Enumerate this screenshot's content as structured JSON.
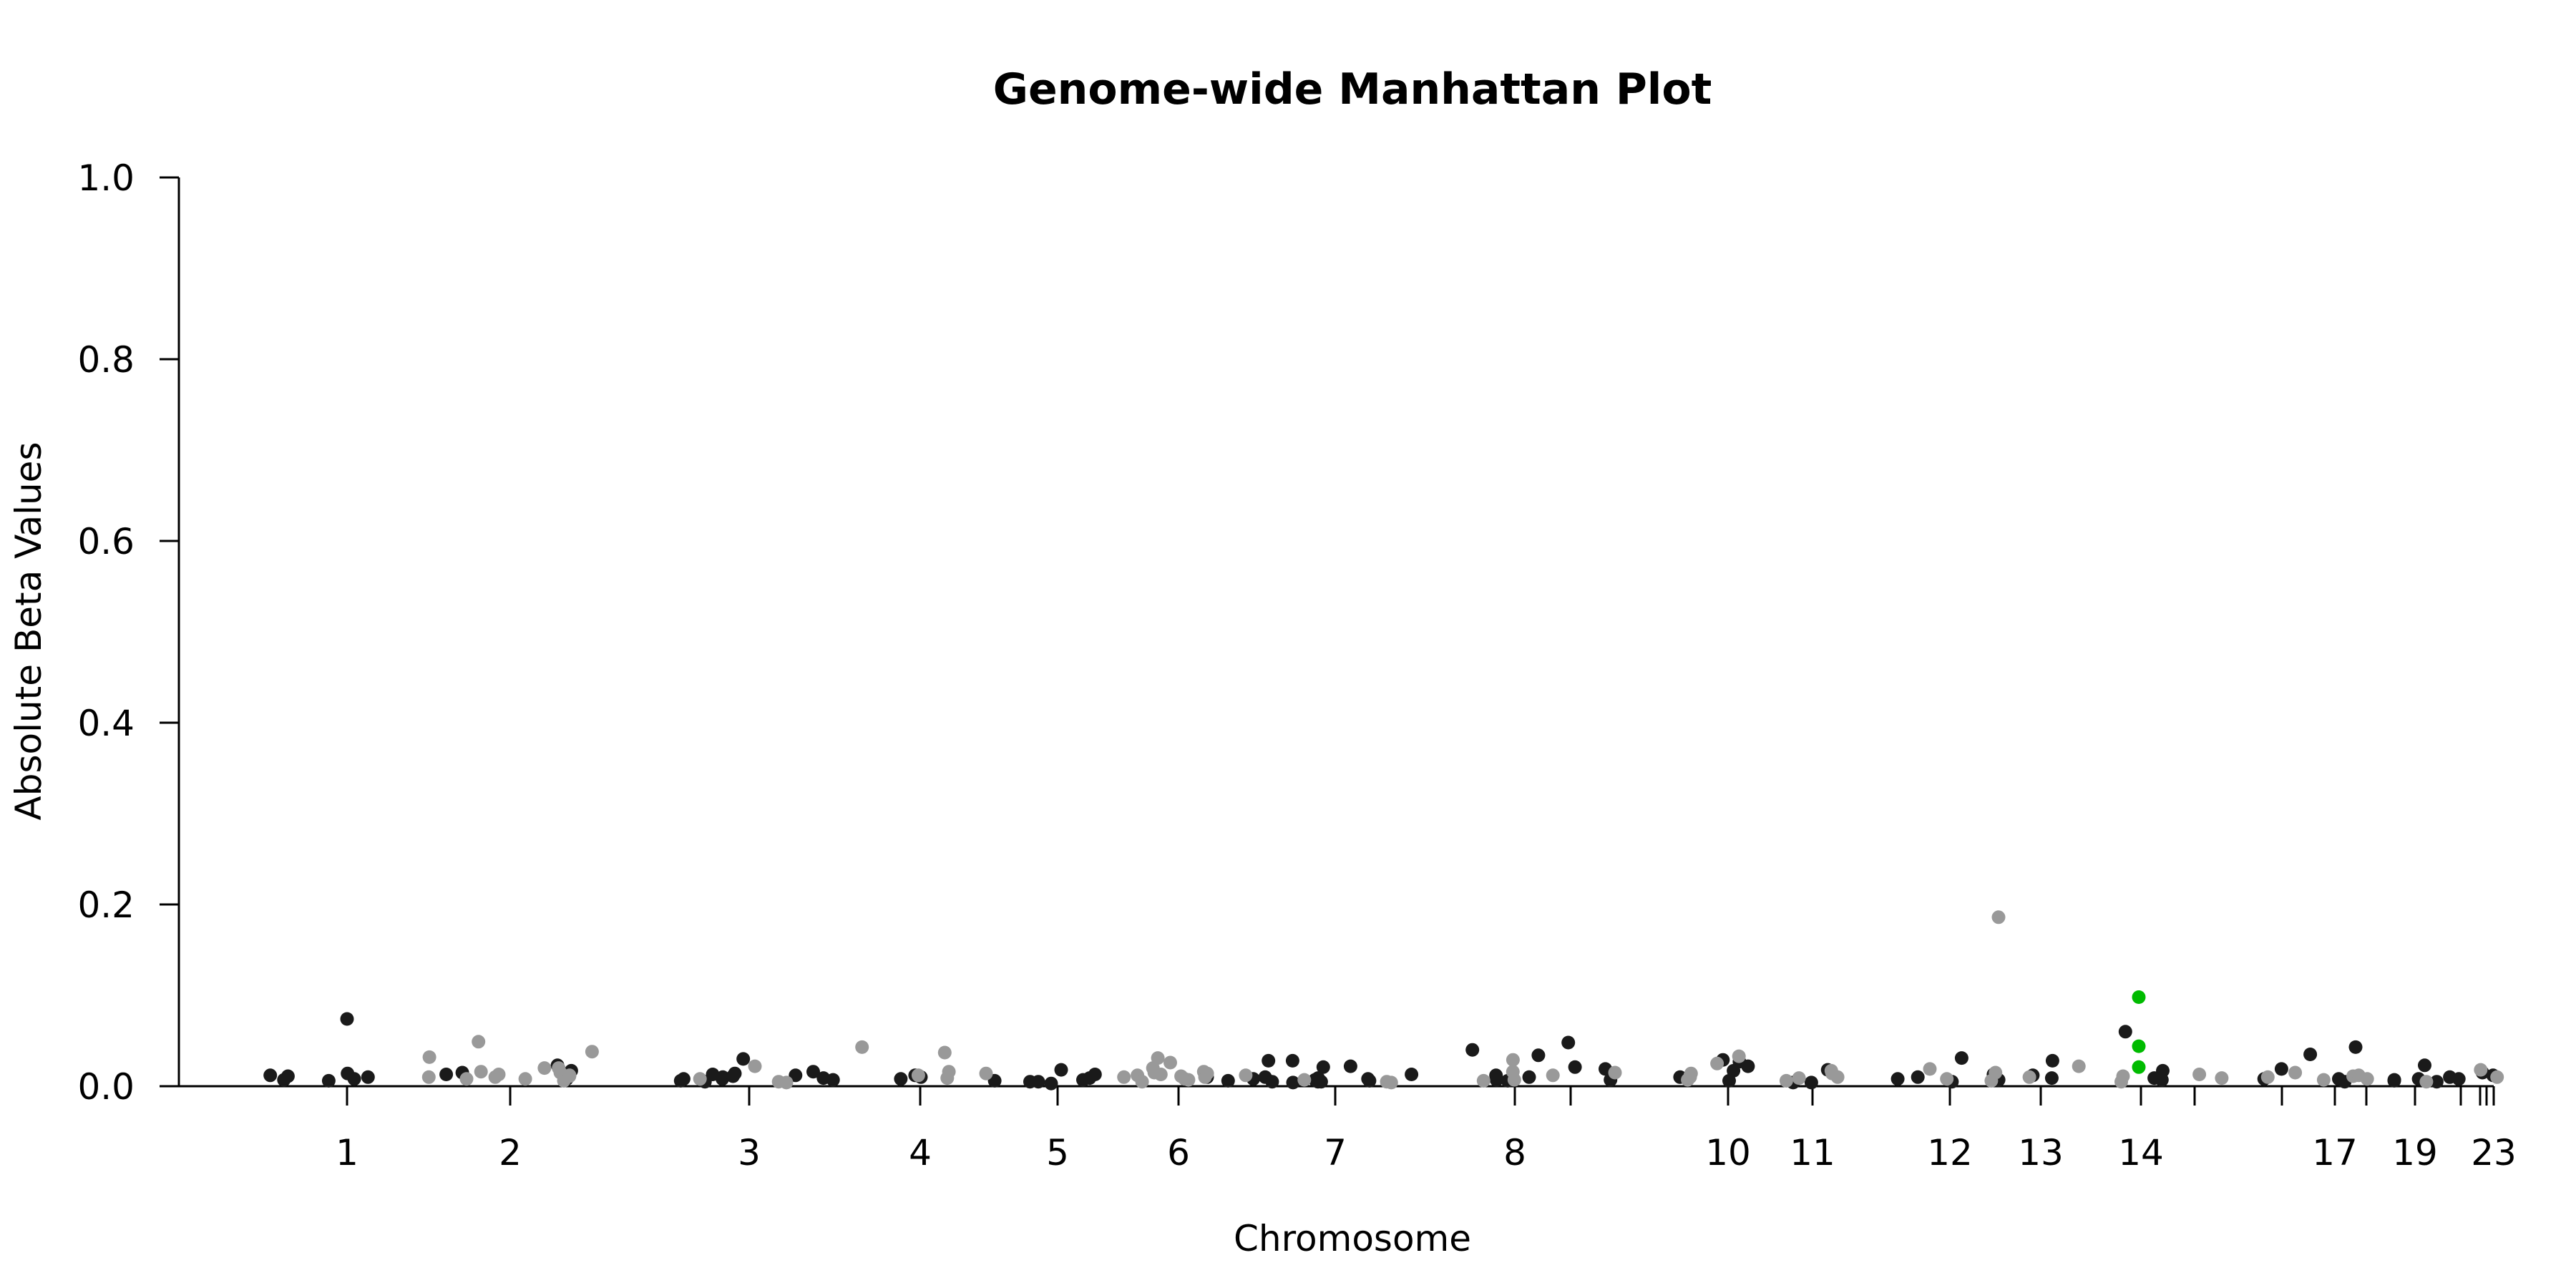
{
  "chart_data": {
    "type": "scatter",
    "title": "Genome-wide Manhattan Plot",
    "xlabel": "Chromosome",
    "ylabel": "Absolute Beta Values",
    "ylim": [
      0,
      1.0
    ],
    "y_ticks": [
      "0.0",
      "0.2",
      "0.4",
      "0.6",
      "0.8",
      "1.0"
    ],
    "y_tick_values": [
      0.0,
      0.2,
      0.4,
      0.6,
      0.8,
      1.0
    ],
    "x_ticks": [
      {
        "label": "1",
        "chr": 1
      },
      {
        "label": "2",
        "chr": 2
      },
      {
        "label": "3",
        "chr": 3
      },
      {
        "label": "4",
        "chr": 4
      },
      {
        "label": "5",
        "chr": 5
      },
      {
        "label": "6",
        "chr": 6
      },
      {
        "label": "7",
        "chr": 7
      },
      {
        "label": "8",
        "chr": 8
      },
      {
        "label": "",
        "chr": 9
      },
      {
        "label": "10",
        "chr": 10
      },
      {
        "label": "11",
        "chr": 11
      },
      {
        "label": "12",
        "chr": 12
      },
      {
        "label": "13",
        "chr": 13
      },
      {
        "label": "14",
        "chr": 14
      },
      {
        "label": "",
        "chr": 15
      },
      {
        "label": "",
        "chr": 16
      },
      {
        "label": "17",
        "chr": 17
      },
      {
        "label": "",
        "chr": 18
      },
      {
        "label": "19",
        "chr": 19
      },
      {
        "label": "",
        "chr": 20
      },
      {
        "label": "",
        "chr": 21
      },
      {
        "label": "",
        "chr": 22
      },
      {
        "label": "23",
        "chr": 23
      }
    ],
    "colors": {
      "dark": "#1a1a1a",
      "light": "#999999",
      "highlight": "#00bb00"
    },
    "grid": false,
    "legend": "none",
    "series": [
      {
        "color": "#1a1a1a",
        "points": [
          {
            "chr": 1,
            "y": 0.007
          },
          {
            "chr": 1,
            "y": 0.01
          },
          {
            "chr": 1,
            "y": 0.006
          },
          {
            "chr": 1,
            "y": 0.008
          },
          {
            "chr": 1,
            "y": 0.014
          },
          {
            "chr": 1,
            "y": 0.011
          },
          {
            "chr": 1,
            "y": 0.012
          },
          {
            "chr": 1,
            "y": 0.074
          },
          {
            "chr": 2,
            "y": 0.015
          },
          {
            "chr": 2,
            "y": 0.023
          },
          {
            "chr": 2,
            "y": 0.017
          },
          {
            "chr": 2,
            "y": 0.008
          },
          {
            "chr": 2,
            "y": 0.013
          },
          {
            "chr": 3,
            "y": 0.03
          },
          {
            "chr": 3,
            "y": 0.012
          },
          {
            "chr": 3,
            "y": 0.008
          },
          {
            "chr": 3,
            "y": 0.005
          },
          {
            "chr": 3,
            "y": 0.01
          },
          {
            "chr": 3,
            "y": 0.007
          },
          {
            "chr": 3,
            "y": 0.009
          },
          {
            "chr": 3,
            "y": 0.011
          },
          {
            "chr": 3,
            "y": 0.014
          },
          {
            "chr": 3,
            "y": 0.016
          },
          {
            "chr": 3,
            "y": 0.008
          },
          {
            "chr": 3,
            "y": 0.006
          },
          {
            "chr": 3,
            "y": 0.013
          },
          {
            "chr": 4,
            "y": 0.008
          },
          {
            "chr": 4,
            "y": 0.01
          },
          {
            "chr": 4,
            "y": 0.006
          },
          {
            "chr": 4,
            "y": 0.012
          },
          {
            "chr": 5,
            "y": 0.007
          },
          {
            "chr": 5,
            "y": 0.005
          },
          {
            "chr": 5,
            "y": 0.003
          },
          {
            "chr": 5,
            "y": 0.013
          },
          {
            "chr": 5,
            "y": 0.009
          },
          {
            "chr": 5,
            "y": 0.005
          },
          {
            "chr": 5,
            "y": 0.018
          },
          {
            "chr": 6,
            "y": 0.006
          },
          {
            "chr": 6,
            "y": 0.01
          },
          {
            "chr": 7,
            "y": 0.028
          },
          {
            "chr": 7,
            "y": 0.022
          },
          {
            "chr": 7,
            "y": 0.01
          },
          {
            "chr": 7,
            "y": 0.008
          },
          {
            "chr": 7,
            "y": 0.005
          },
          {
            "chr": 7,
            "y": 0.006
          },
          {
            "chr": 7,
            "y": 0.004
          },
          {
            "chr": 7,
            "y": 0.007
          },
          {
            "chr": 7,
            "y": 0.009
          },
          {
            "chr": 7,
            "y": 0.005
          },
          {
            "chr": 7,
            "y": 0.013
          },
          {
            "chr": 7,
            "y": 0.021
          },
          {
            "chr": 7,
            "y": 0.008
          },
          {
            "chr": 7,
            "y": 0.028
          },
          {
            "chr": 7,
            "y": 0.005
          },
          {
            "chr": 8,
            "y": 0.01
          },
          {
            "chr": 8,
            "y": 0.04
          },
          {
            "chr": 8,
            "y": 0.007
          },
          {
            "chr": 8,
            "y": 0.012
          },
          {
            "chr": 8,
            "y": 0.006
          },
          {
            "chr": 9,
            "y": 0.034
          },
          {
            "chr": 9,
            "y": 0.019
          },
          {
            "chr": 9,
            "y": 0.048
          },
          {
            "chr": 9,
            "y": 0.021
          },
          {
            "chr": 9,
            "y": 0.007
          },
          {
            "chr": 10,
            "y": 0.027
          },
          {
            "chr": 10,
            "y": 0.022
          },
          {
            "chr": 10,
            "y": 0.01
          },
          {
            "chr": 10,
            "y": 0.017
          },
          {
            "chr": 10,
            "y": 0.029
          },
          {
            "chr": 10,
            "y": 0.006
          },
          {
            "chr": 11,
            "y": 0.018
          },
          {
            "chr": 11,
            "y": 0.004
          },
          {
            "chr": 11,
            "y": 0.004
          },
          {
            "chr": 12,
            "y": 0.007
          },
          {
            "chr": 12,
            "y": 0.01
          },
          {
            "chr": 12,
            "y": 0.005
          },
          {
            "chr": 12,
            "y": 0.013
          },
          {
            "chr": 12,
            "y": 0.031
          },
          {
            "chr": 12,
            "y": 0.008
          },
          {
            "chr": 13,
            "y": 0.009
          },
          {
            "chr": 13,
            "y": 0.028
          },
          {
            "chr": 13,
            "y": 0.012
          },
          {
            "chr": 14,
            "y": 0.017
          },
          {
            "chr": 14,
            "y": 0.009
          },
          {
            "chr": 14,
            "y": 0.06
          },
          {
            "chr": 14,
            "y": 0.007
          },
          {
            "chr": 16,
            "y": 0.035
          },
          {
            "chr": 16,
            "y": 0.019
          },
          {
            "chr": 16,
            "y": 0.008
          },
          {
            "chr": 17,
            "y": 0.008
          },
          {
            "chr": 17,
            "y": 0.005
          },
          {
            "chr": 17,
            "y": 0.043
          },
          {
            "chr": 19,
            "y": 0.008
          },
          {
            "chr": 19,
            "y": 0.023
          },
          {
            "chr": 19,
            "y": 0.006
          },
          {
            "chr": 19,
            "y": 0.005
          },
          {
            "chr": 19,
            "y": 0.007
          },
          {
            "chr": 20,
            "y": 0.01
          },
          {
            "chr": 20,
            "y": 0.008
          },
          {
            "chr": 22,
            "y": 0.012
          },
          {
            "chr": 22,
            "y": 0.015
          }
        ]
      },
      {
        "color": "#999999",
        "points": [
          {
            "chr": 2,
            "y": 0.012
          },
          {
            "chr": 2,
            "y": 0.008
          },
          {
            "chr": 2,
            "y": 0.015
          },
          {
            "chr": 2,
            "y": 0.01
          },
          {
            "chr": 2,
            "y": 0.013
          },
          {
            "chr": 2,
            "y": 0.032
          },
          {
            "chr": 2,
            "y": 0.016
          },
          {
            "chr": 2,
            "y": 0.02
          },
          {
            "chr": 2,
            "y": 0.006
          },
          {
            "chr": 2,
            "y": 0.02
          },
          {
            "chr": 2,
            "y": 0.038
          },
          {
            "chr": 2,
            "y": 0.008
          },
          {
            "chr": 2,
            "y": 0.011
          },
          {
            "chr": 2,
            "y": 0.049
          },
          {
            "chr": 2,
            "y": 0.01
          },
          {
            "chr": 3,
            "y": 0.008
          },
          {
            "chr": 3,
            "y": 0.022
          },
          {
            "chr": 3,
            "y": 0.005
          },
          {
            "chr": 3,
            "y": 0.004
          },
          {
            "chr": 4,
            "y": 0.009
          },
          {
            "chr": 4,
            "y": 0.012
          },
          {
            "chr": 4,
            "y": 0.037
          },
          {
            "chr": 4,
            "y": 0.014
          },
          {
            "chr": 4,
            "y": 0.016
          },
          {
            "chr": 4,
            "y": 0.043
          },
          {
            "chr": 6,
            "y": 0.007
          },
          {
            "chr": 6,
            "y": 0.012
          },
          {
            "chr": 6,
            "y": 0.016
          },
          {
            "chr": 6,
            "y": 0.026
          },
          {
            "chr": 6,
            "y": 0.02
          },
          {
            "chr": 6,
            "y": 0.01
          },
          {
            "chr": 6,
            "y": 0.031
          },
          {
            "chr": 6,
            "y": 0.013
          },
          {
            "chr": 6,
            "y": 0.005
          },
          {
            "chr": 6,
            "y": 0.015
          },
          {
            "chr": 6,
            "y": 0.01
          },
          {
            "chr": 6,
            "y": 0.008
          },
          {
            "chr": 6,
            "y": 0.012
          },
          {
            "chr": 6,
            "y": 0.014
          },
          {
            "chr": 6,
            "y": 0.011
          },
          {
            "chr": 7,
            "y": 0.004
          },
          {
            "chr": 7,
            "y": 0.005
          },
          {
            "chr": 7,
            "y": 0.007
          },
          {
            "chr": 8,
            "y": 0.016
          },
          {
            "chr": 8,
            "y": 0.029
          },
          {
            "chr": 8,
            "y": 0.006
          },
          {
            "chr": 9,
            "y": 0.015
          },
          {
            "chr": 9,
            "y": 0.012
          },
          {
            "chr": 9,
            "y": 0.007
          },
          {
            "chr": 10,
            "y": 0.033
          },
          {
            "chr": 10,
            "y": 0.025
          },
          {
            "chr": 10,
            "y": 0.007
          },
          {
            "chr": 10,
            "y": 0.014
          },
          {
            "chr": 10,
            "y": 0.01
          },
          {
            "chr": 10,
            "y": 0.012
          },
          {
            "chr": 11,
            "y": 0.01
          },
          {
            "chr": 11,
            "y": 0.014
          },
          {
            "chr": 11,
            "y": 0.017
          },
          {
            "chr": 11,
            "y": 0.009
          },
          {
            "chr": 11,
            "y": 0.006
          },
          {
            "chr": 12,
            "y": 0.008
          },
          {
            "chr": 12,
            "y": 0.015
          },
          {
            "chr": 12,
            "y": 0.019
          },
          {
            "chr": 12,
            "y": 0.186
          },
          {
            "chr": 12,
            "y": 0.006
          },
          {
            "chr": 13,
            "y": 0.01
          },
          {
            "chr": 13,
            "y": 0.022
          },
          {
            "chr": 14,
            "y": 0.005
          },
          {
            "chr": 14,
            "y": 0.011
          },
          {
            "chr": 15,
            "y": 0.013
          },
          {
            "chr": 15,
            "y": 0.009
          },
          {
            "chr": 16,
            "y": 0.01
          },
          {
            "chr": 16,
            "y": 0.015
          },
          {
            "chr": 17,
            "y": 0.007
          },
          {
            "chr": 17,
            "y": 0.011
          },
          {
            "chr": 18,
            "y": 0.012
          },
          {
            "chr": 18,
            "y": 0.008
          },
          {
            "chr": 19,
            "y": 0.005
          },
          {
            "chr": 21,
            "y": 0.018
          },
          {
            "chr": 23,
            "y": 0.01
          }
        ]
      },
      {
        "color": "#00bb00",
        "points": [
          {
            "chr": 14,
            "y": 0.098
          },
          {
            "chr": 14,
            "y": 0.044
          },
          {
            "chr": 14,
            "y": 0.021
          }
        ]
      }
    ]
  }
}
